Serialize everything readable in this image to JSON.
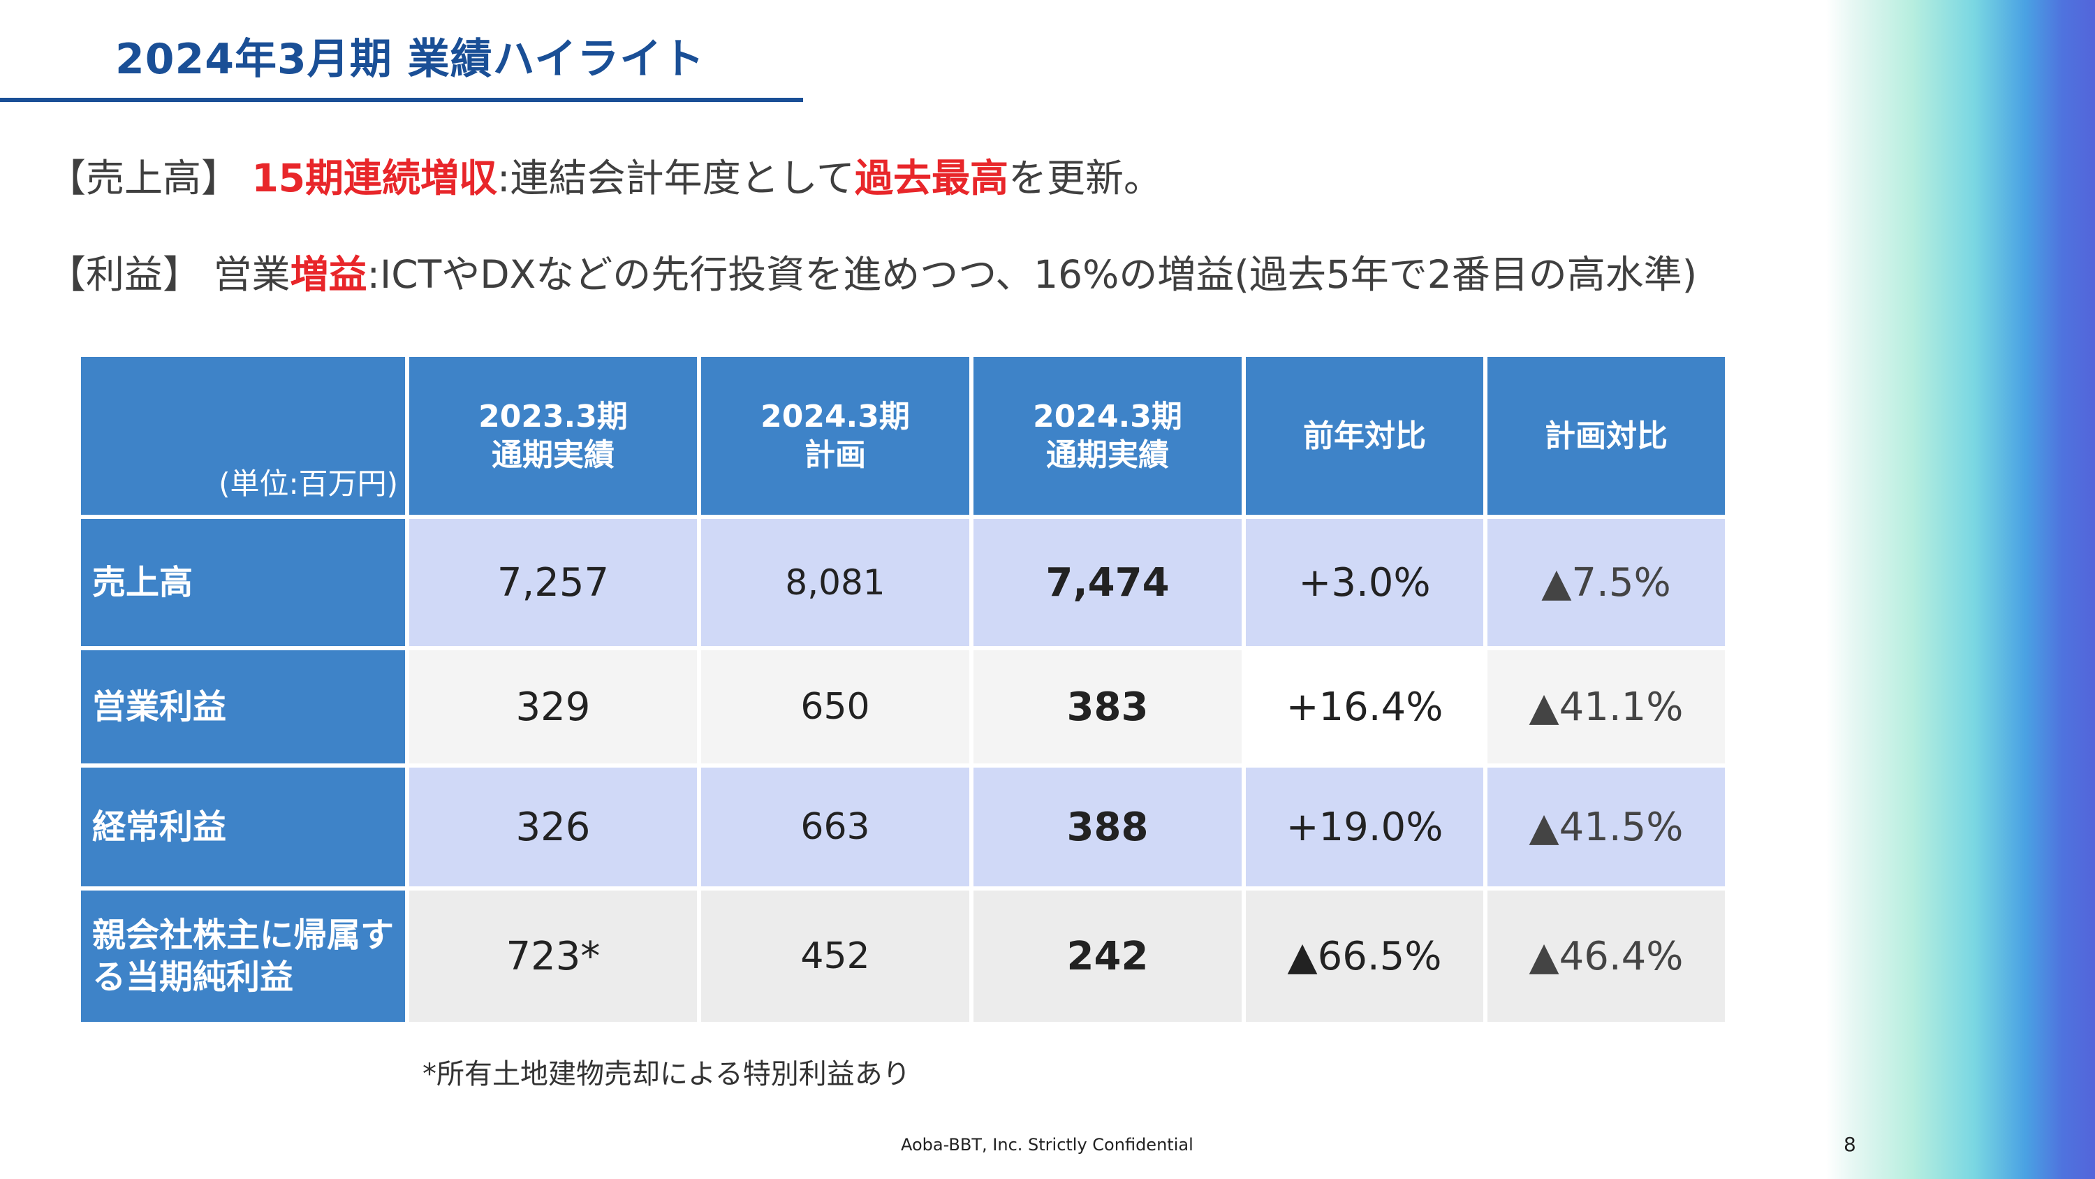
{
  "title": "2024年3月期  業績ハイライト",
  "line1": {
    "tag": "【売上高】",
    "red1": "15期連続増収",
    "text1": ":連結会計年度として",
    "red2": "過去最高",
    "text2": "を更新。"
  },
  "line2": {
    "tag": "【利益】",
    "text1": "営業",
    "red1": "増益",
    "text2": ":ICTやDXなどの先行投資を進めつつ、16%の増益(過去5年で2番目の高水準)"
  },
  "table": {
    "unit": "(単位:百万円)",
    "headers": [
      {
        "line1": "2023.3期",
        "line2": "通期実績"
      },
      {
        "line1": "2024.3期",
        "line2": "計画"
      },
      {
        "line1": "2024.3期",
        "line2": "通期実績"
      },
      {
        "line1": "前年対比",
        "line2": ""
      },
      {
        "line1": "計画対比",
        "line2": ""
      }
    ],
    "rows": [
      {
        "label": "売上高",
        "values": [
          "7,257",
          "8,081",
          "7,474",
          "+3.0%",
          "▲7.5%"
        ]
      },
      {
        "label": "営業利益",
        "values": [
          "329",
          "650",
          "383",
          "+16.4%",
          "▲41.1%"
        ]
      },
      {
        "label": "経常利益",
        "values": [
          "326",
          "663",
          "388",
          "+19.0%",
          "▲41.5%"
        ]
      },
      {
        "label": "親会社株主に帰属する当期純利益",
        "values": [
          "723*",
          "452",
          "242",
          "▲66.5%",
          "▲46.4%"
        ]
      }
    ]
  },
  "footnote": "*所有土地建物売却による特別利益あり",
  "footer": "Aoba-BBT, Inc. Strictly Confidential",
  "page_number": "8",
  "colors": {
    "title": "#1a4f96",
    "accent_red": "#e8262a",
    "header_blue": "#3e83c8",
    "row_blue": "#d0d9f7"
  }
}
